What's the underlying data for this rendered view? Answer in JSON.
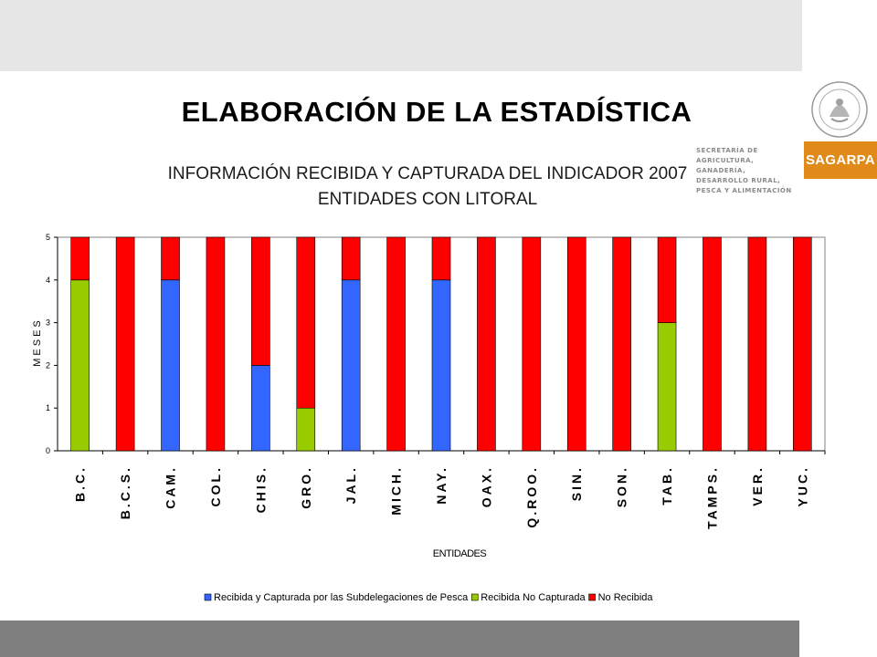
{
  "header": {
    "title": "ELABORACIÓN  DE LA ESTADÍSTICA",
    "subtitle_line1": "INFORMACIÓN RECIBIDA Y CAPTURADA DEL INDICADOR 2007",
    "subtitle_line2": "ENTIDADES CON LITORAL"
  },
  "branding": {
    "seal_text": "ESTADOS UNIDOS MEXICANOS",
    "agency_line1": "SECRETARÍA DE AGRICULTURA,",
    "agency_line2": "GANADERÍA, DESARROLLO RURAL,",
    "agency_line3": "PESCA Y ALIMENTACIÓN",
    "logo_text": "SAGARPA",
    "logo_color": "#e08a1a"
  },
  "chart_data": {
    "type": "bar",
    "stacked": true,
    "title": "INFORMACIÓN RECIBIDA Y CAPTURADA DEL INDICADOR 2007",
    "subtitle": "ENTIDADES CON LITORAL",
    "xlabel": "ENTIDADES",
    "ylabel": "MESES",
    "ylim": [
      0,
      5
    ],
    "yticks": [
      "0",
      "1",
      "2",
      "3",
      "4",
      "5"
    ],
    "grid": false,
    "legend_position": "bottom",
    "categories": [
      "B.C.",
      "B.C.S.",
      "CAM.",
      "COL.",
      "CHIS.",
      "GRO.",
      "JAL.",
      "MICH.",
      "NAY.",
      "OAX.",
      "Q.ROO.",
      "SIN.",
      "SON.",
      "TAB.",
      "TAMPS.",
      "VER.",
      "YUC."
    ],
    "series": [
      {
        "name": "Recibida y Capturada por las Subdelegaciones de Pesca",
        "color": "#3366ff",
        "values": [
          0,
          0,
          4,
          0,
          2,
          0,
          4,
          0,
          4,
          0,
          0,
          0,
          0,
          0,
          0,
          0,
          0
        ]
      },
      {
        "name": "Recibida No Capturada",
        "color": "#99cc00",
        "values": [
          4,
          0,
          0,
          0,
          0,
          1,
          0,
          0,
          0,
          0,
          0,
          0,
          0,
          3,
          0,
          0,
          0
        ]
      },
      {
        "name": "No Recibida",
        "color": "#ff0000",
        "values": [
          1,
          5,
          1,
          5,
          3,
          4,
          1,
          5,
          1,
          5,
          5,
          5,
          5,
          2,
          5,
          5,
          5
        ]
      }
    ]
  }
}
